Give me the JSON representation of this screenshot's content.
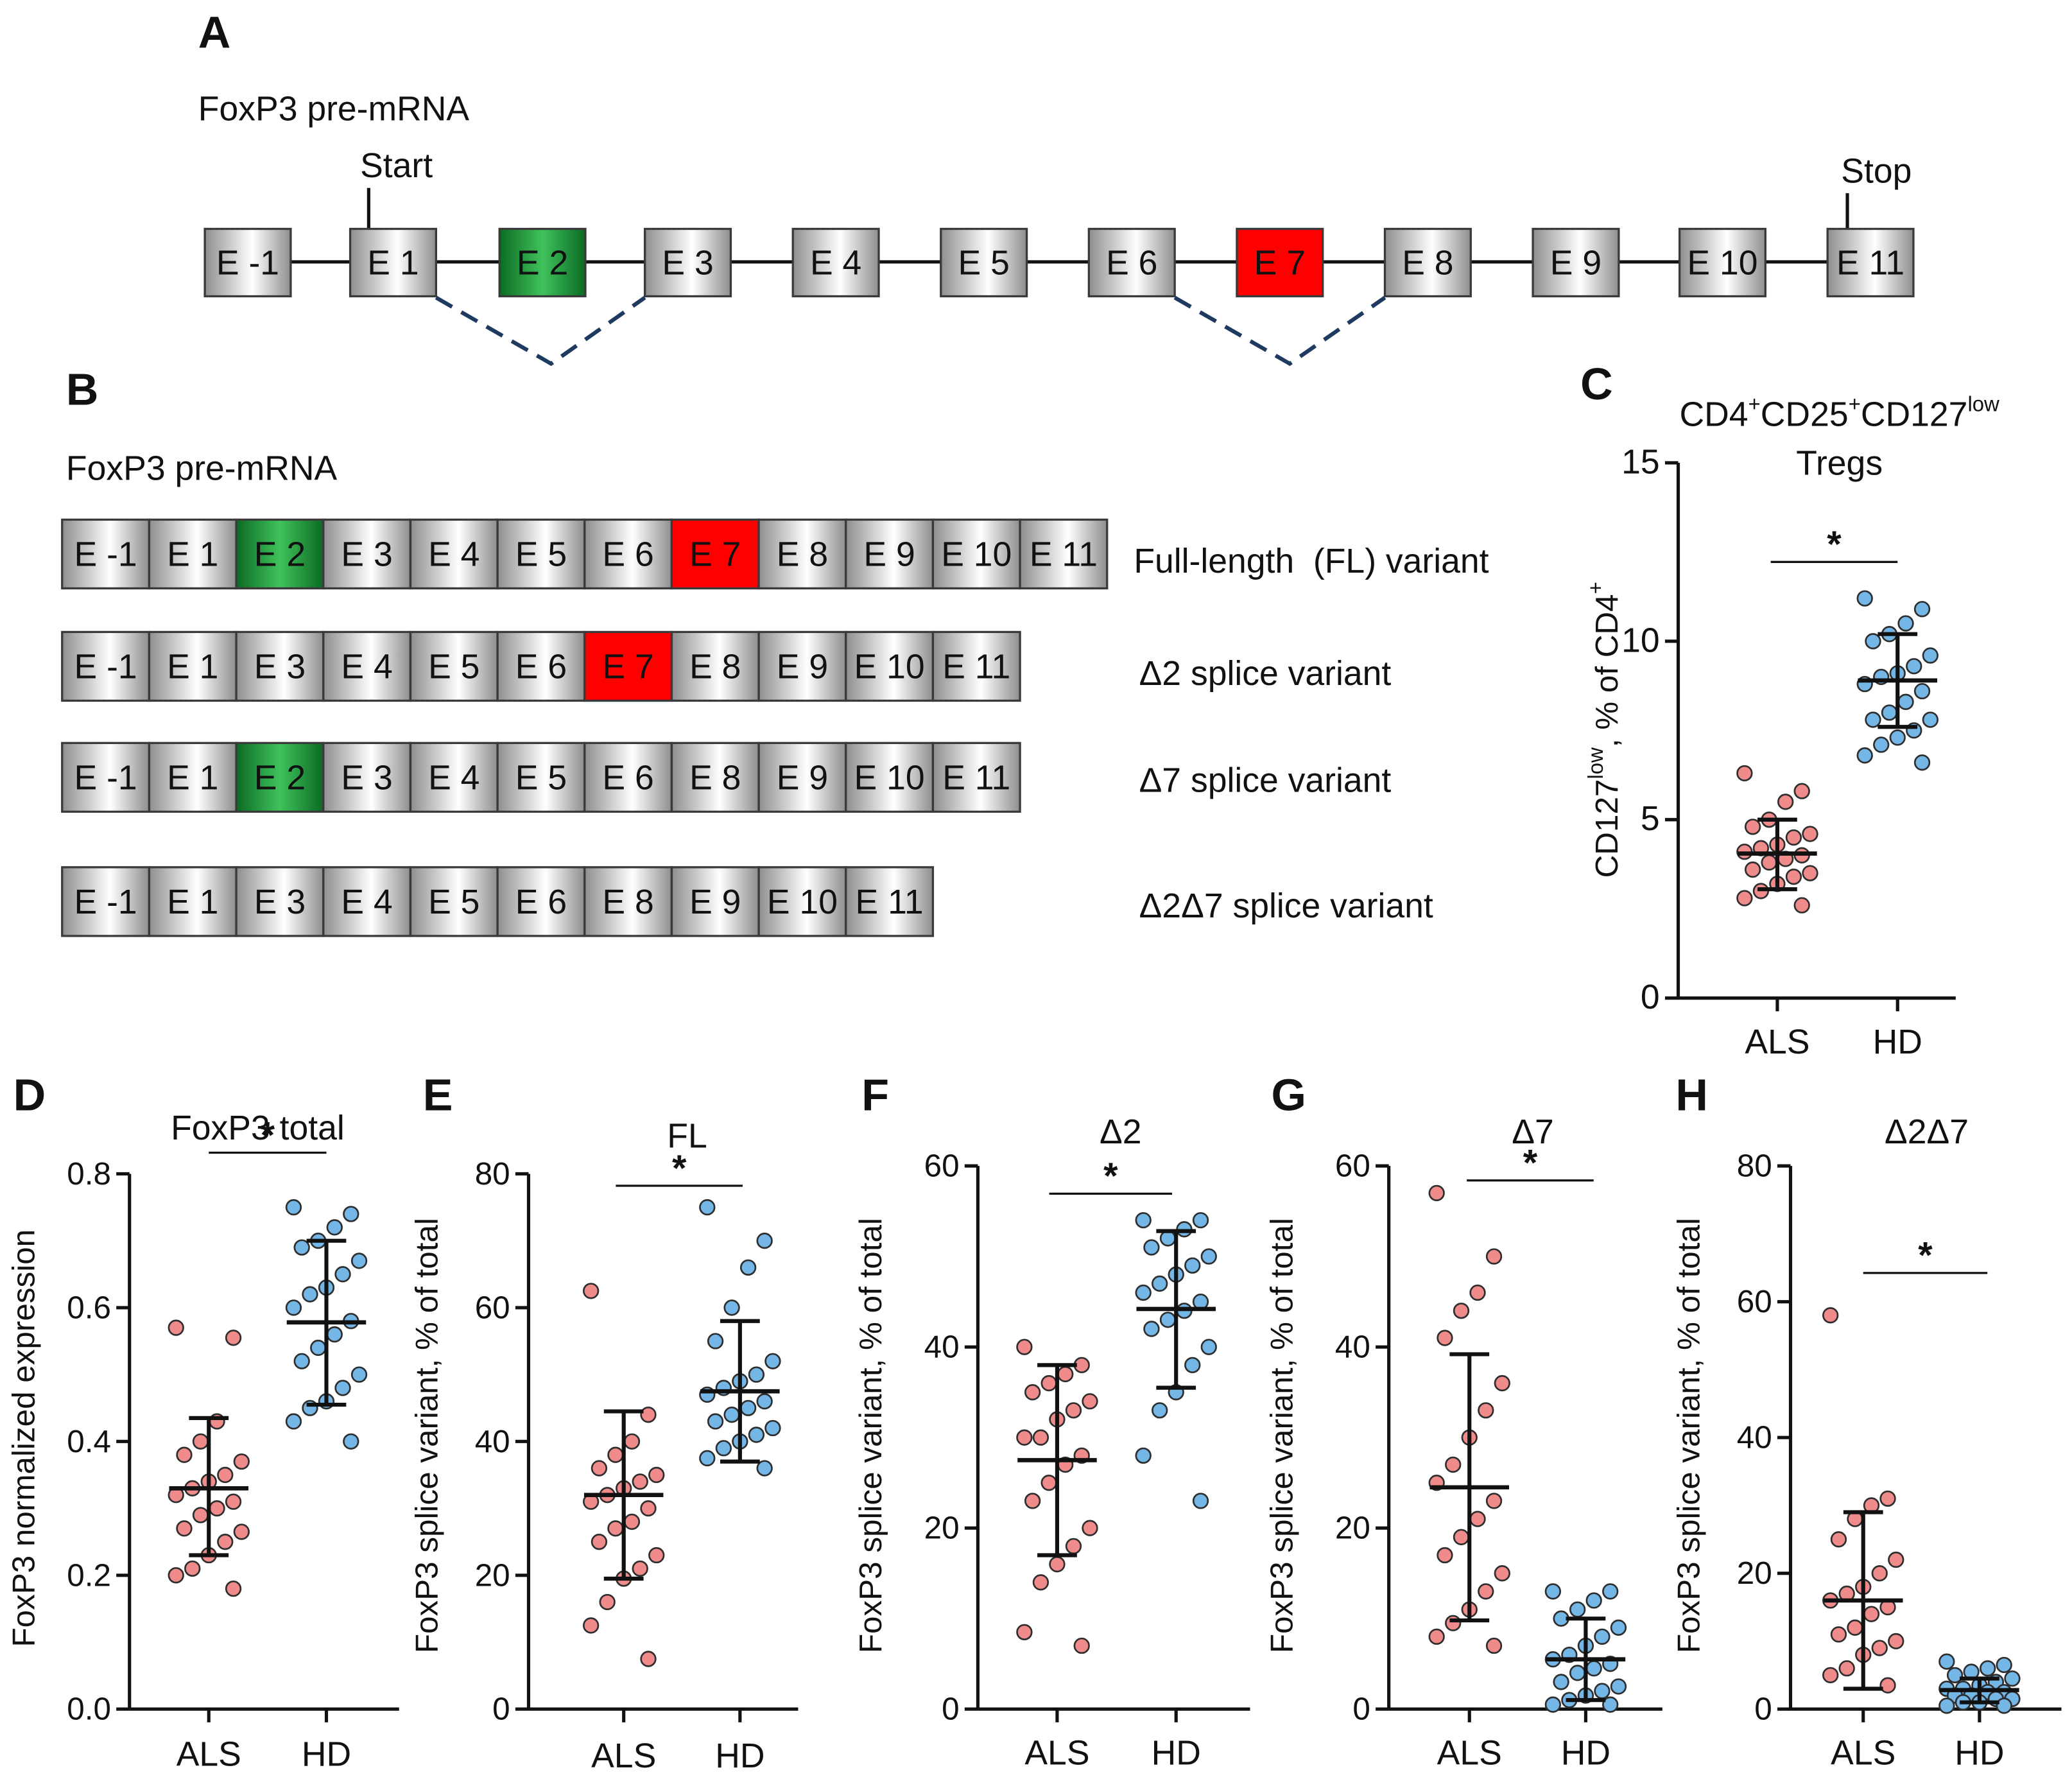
{
  "colors": {
    "exon_grey_edge": "#8e8e8e",
    "exon_grey_center": "#ffffff",
    "exon_green_edge": "#0b6a22",
    "exon_green_center": "#40c25c",
    "exon_red": "#ff0000",
    "als_point": "#f08b8b",
    "hd_point": "#74b6e6",
    "splice_dash": "#1f3a60",
    "ink": "#111111"
  },
  "panel_a": {
    "letter": "A",
    "title": "FoxP3 pre-mRNA",
    "start_label": "Start",
    "stop_label": "Stop",
    "exons": [
      {
        "label": "E -1",
        "kind": "grey"
      },
      {
        "label": "E 1",
        "kind": "grey"
      },
      {
        "label": "E 2",
        "kind": "green"
      },
      {
        "label": "E 3",
        "kind": "grey"
      },
      {
        "label": "E 4",
        "kind": "grey"
      },
      {
        "label": "E 5",
        "kind": "grey"
      },
      {
        "label": "E 6",
        "kind": "grey"
      },
      {
        "label": "E 7",
        "kind": "red"
      },
      {
        "label": "E 8",
        "kind": "grey"
      },
      {
        "label": "E 9",
        "kind": "grey"
      },
      {
        "label": "E 10",
        "kind": "grey"
      },
      {
        "label": "E 11",
        "kind": "grey"
      }
    ]
  },
  "panel_b": {
    "letter": "B",
    "title": "FoxP3 pre-mRNA",
    "rows": [
      {
        "label": "Full-length  (FL) variant",
        "exons": [
          {
            "label": "E -1",
            "kind": "grey"
          },
          {
            "label": "E 1",
            "kind": "grey"
          },
          {
            "label": "E 2",
            "kind": "green"
          },
          {
            "label": "E 3",
            "kind": "grey"
          },
          {
            "label": "E 4",
            "kind": "grey"
          },
          {
            "label": "E 5",
            "kind": "grey"
          },
          {
            "label": "E 6",
            "kind": "grey"
          },
          {
            "label": "E 7",
            "kind": "red"
          },
          {
            "label": "E 8",
            "kind": "grey"
          },
          {
            "label": "E 9",
            "kind": "grey"
          },
          {
            "label": "E 10",
            "kind": "grey"
          },
          {
            "label": "E 11",
            "kind": "grey"
          }
        ]
      },
      {
        "label": "Δ2 splice variant",
        "exons": [
          {
            "label": "E -1",
            "kind": "grey"
          },
          {
            "label": "E 1",
            "kind": "grey"
          },
          {
            "label": "E 3",
            "kind": "grey"
          },
          {
            "label": "E 4",
            "kind": "grey"
          },
          {
            "label": "E 5",
            "kind": "grey"
          },
          {
            "label": "E 6",
            "kind": "grey"
          },
          {
            "label": "E 7",
            "kind": "red"
          },
          {
            "label": "E 8",
            "kind": "grey"
          },
          {
            "label": "E 9",
            "kind": "grey"
          },
          {
            "label": "E 10",
            "kind": "grey"
          },
          {
            "label": "E 11",
            "kind": "grey"
          }
        ]
      },
      {
        "label": "Δ7 splice variant",
        "exons": [
          {
            "label": "E -1",
            "kind": "grey"
          },
          {
            "label": "E 1",
            "kind": "grey"
          },
          {
            "label": "E 2",
            "kind": "green"
          },
          {
            "label": "E 3",
            "kind": "grey"
          },
          {
            "label": "E 4",
            "kind": "grey"
          },
          {
            "label": "E 5",
            "kind": "grey"
          },
          {
            "label": "E 6",
            "kind": "grey"
          },
          {
            "label": "E 8",
            "kind": "grey"
          },
          {
            "label": "E 9",
            "kind": "grey"
          },
          {
            "label": "E 10",
            "kind": "grey"
          },
          {
            "label": "E 11",
            "kind": "grey"
          }
        ]
      },
      {
        "label": "Δ2Δ7 splice variant",
        "exons": [
          {
            "label": "E -1",
            "kind": "grey"
          },
          {
            "label": "E 1",
            "kind": "grey"
          },
          {
            "label": "E 3",
            "kind": "grey"
          },
          {
            "label": "E 4",
            "kind": "grey"
          },
          {
            "label": "E 5",
            "kind": "grey"
          },
          {
            "label": "E 6",
            "kind": "grey"
          },
          {
            "label": "E 8",
            "kind": "grey"
          },
          {
            "label": "E 9",
            "kind": "grey"
          },
          {
            "label": "E 10",
            "kind": "grey"
          },
          {
            "label": "E 11",
            "kind": "grey"
          }
        ]
      }
    ]
  },
  "chart_data": [
    {
      "panel": "C",
      "type": "scatter",
      "title_parts": [
        "CD4",
        "+",
        "CD25",
        "+",
        "CD127",
        "low"
      ],
      "title_line2": "Tregs",
      "ylabel_parts": [
        "CD127",
        "low",
        ", % of CD4",
        "+"
      ],
      "categories": [
        "ALS",
        "HD"
      ],
      "ylim": [
        0,
        15
      ],
      "yticks": [
        0,
        5,
        10,
        15
      ],
      "ytick_labels": [
        "0",
        "5",
        "10",
        "15"
      ],
      "groups": [
        {
          "values": [
            6.3,
            5.8,
            5.5,
            5.0,
            4.8,
            4.6,
            4.5,
            4.3,
            4.2,
            4.1,
            4.0,
            3.9,
            3.8,
            3.6,
            3.5,
            3.4,
            3.2,
            3.0,
            2.8,
            2.6
          ],
          "mean": 4.05,
          "sd": [
            3.05,
            5.0
          ]
        },
        {
          "values": [
            11.2,
            10.9,
            10.5,
            10.2,
            10.0,
            9.6,
            9.3,
            9.1,
            9.0,
            8.8,
            8.6,
            8.3,
            8.0,
            7.8,
            7.8,
            7.5,
            7.3,
            7.1,
            6.8,
            6.6
          ],
          "mean": 8.9,
          "sd": [
            7.6,
            10.2
          ]
        }
      ],
      "significance": "*"
    },
    {
      "panel": "D",
      "type": "scatter",
      "title": "FoxP3 total",
      "ylabel": "FoxP3 normalized expression",
      "categories": [
        "ALS",
        "HD"
      ],
      "ylim": [
        0,
        0.8
      ],
      "yticks": [
        0,
        0.2,
        0.4,
        0.6,
        0.8
      ],
      "ytick_labels": [
        "0.0",
        "0.2",
        "0.4",
        "0.6",
        "0.8"
      ],
      "groups": [
        {
          "values": [
            0.57,
            0.555,
            0.43,
            0.4,
            0.38,
            0.37,
            0.35,
            0.34,
            0.33,
            0.32,
            0.31,
            0.3,
            0.29,
            0.27,
            0.265,
            0.25,
            0.23,
            0.21,
            0.2,
            0.18
          ],
          "mean": 0.33,
          "sd": [
            0.23,
            0.435
          ]
        },
        {
          "values": [
            0.75,
            0.74,
            0.72,
            0.7,
            0.69,
            0.67,
            0.65,
            0.63,
            0.62,
            0.6,
            0.58,
            0.56,
            0.54,
            0.52,
            0.5,
            0.48,
            0.46,
            0.45,
            0.43,
            0.4
          ],
          "mean": 0.578,
          "sd": [
            0.455,
            0.7
          ]
        }
      ],
      "significance": "*"
    },
    {
      "panel": "E",
      "type": "scatter",
      "title": "FL",
      "ylabel": "FoxP3 splice variant, % of total",
      "categories": [
        "ALS",
        "HD"
      ],
      "ylim": [
        0,
        80
      ],
      "yticks": [
        0,
        20,
        40,
        60,
        80
      ],
      "ytick_labels": [
        "0",
        "20",
        "40",
        "60",
        "80"
      ],
      "groups": [
        {
          "values": [
            62.5,
            44,
            40,
            38,
            36,
            35,
            34,
            33,
            32,
            31,
            30,
            28,
            27,
            25,
            23,
            21,
            19.5,
            16,
            12.5,
            7.5
          ],
          "mean": 32,
          "sd": [
            19.5,
            44.5
          ]
        },
        {
          "values": [
            75,
            70,
            66,
            60,
            55,
            52,
            50,
            49,
            48,
            47,
            46,
            45,
            44,
            43,
            42,
            41,
            40,
            39,
            37.5,
            36
          ],
          "mean": 47.5,
          "sd": [
            37,
            58
          ]
        }
      ],
      "significance": "*"
    },
    {
      "panel": "F",
      "type": "scatter",
      "title": "Δ2",
      "ylabel": "FoxP3 splice variant, % of total",
      "categories": [
        "ALS",
        "HD"
      ],
      "ylim": [
        0,
        60
      ],
      "yticks": [
        0,
        20,
        40,
        60
      ],
      "ytick_labels": [
        "0",
        "20",
        "40",
        "60"
      ],
      "groups": [
        {
          "values": [
            40,
            38,
            37,
            36,
            35,
            34,
            33,
            32,
            30,
            30,
            28,
            27,
            25,
            23,
            20,
            18,
            16,
            14,
            8.5,
            7
          ],
          "mean": 27.5,
          "sd": [
            17,
            38
          ]
        },
        {
          "values": [
            54,
            54,
            53,
            52,
            51,
            50,
            49,
            48,
            47,
            46,
            45,
            44,
            43,
            42,
            40,
            38,
            35,
            33,
            28,
            23
          ],
          "mean": 44.2,
          "sd": [
            35.5,
            52.8
          ]
        }
      ],
      "significance": "*"
    },
    {
      "panel": "G",
      "type": "scatter",
      "title": "Δ7",
      "ylabel": "FoxP3 splice variant, % of total",
      "categories": [
        "ALS",
        "HD"
      ],
      "ylim": [
        0,
        60
      ],
      "yticks": [
        0,
        20,
        40,
        60
      ],
      "ytick_labels": [
        "0",
        "20",
        "40",
        "60"
      ],
      "groups": [
        {
          "values": [
            57,
            50,
            46,
            44,
            41,
            36,
            33,
            30,
            27,
            25,
            23,
            21,
            19,
            17,
            15,
            13,
            11,
            9.5,
            8,
            7
          ],
          "mean": 24.5,
          "sd": [
            9.8,
            39.2
          ]
        },
        {
          "values": [
            13,
            13,
            12,
            11,
            10,
            9,
            8,
            7,
            6,
            5.5,
            5,
            4.5,
            4,
            3,
            2.5,
            2,
            1.5,
            1,
            0.5,
            0.5
          ],
          "mean": 5.5,
          "sd": [
            1,
            10
          ]
        }
      ],
      "significance": "*"
    },
    {
      "panel": "H",
      "type": "scatter",
      "title": "Δ2Δ7",
      "ylabel": "FoxP3 splice variant, % of total",
      "categories": [
        "ALS",
        "HD"
      ],
      "ylim": [
        0,
        80
      ],
      "yticks": [
        0,
        20,
        40,
        60,
        80
      ],
      "ytick_labels": [
        "0",
        "20",
        "40",
        "60",
        "80"
      ],
      "groups": [
        {
          "values": [
            58,
            31,
            30,
            28,
            25,
            22,
            20,
            18,
            17,
            16,
            15,
            14,
            12,
            11,
            10,
            9,
            8,
            6,
            5,
            3.5
          ],
          "mean": 16,
          "sd": [
            3,
            29
          ]
        },
        {
          "values": [
            7,
            6.5,
            6,
            5.5,
            5,
            4.5,
            4,
            3.5,
            3,
            3,
            2.5,
            2.5,
            2,
            2,
            1.5,
            1.5,
            1,
            1,
            0.5,
            0.5
          ],
          "mean": 2.8,
          "sd": [
            1,
            4.5
          ]
        }
      ],
      "significance": "*"
    }
  ]
}
